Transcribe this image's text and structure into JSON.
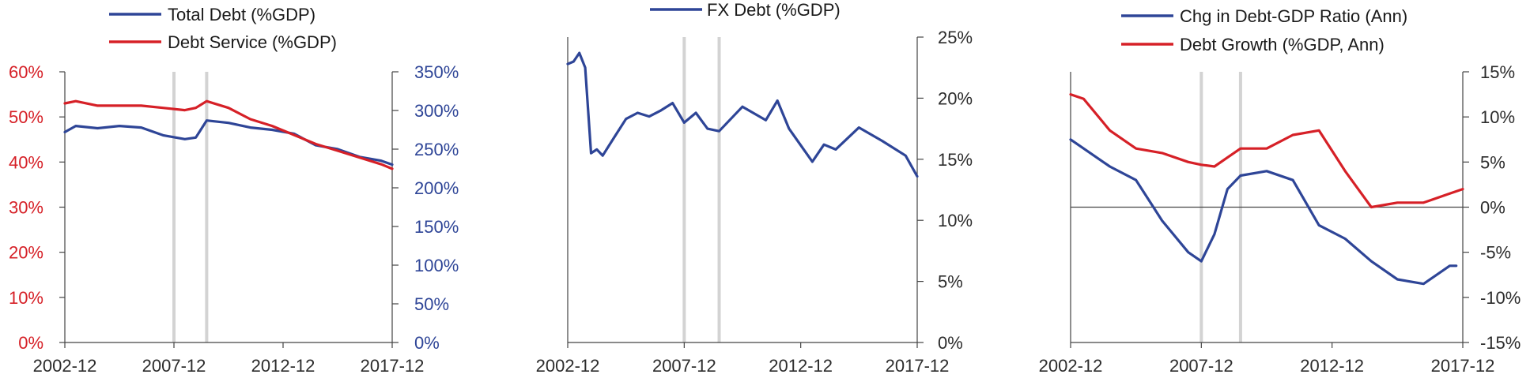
{
  "colors": {
    "blue": "#2e4597",
    "red": "#d62027",
    "axis": "#444444",
    "recession": "#d3d3d3"
  },
  "chart_data": [
    {
      "type": "line",
      "legend": [
        {
          "name": "Total Debt (%GDP)",
          "color": "#2e4597"
        },
        {
          "name": "Debt Service (%GDP)",
          "color": "#d62027"
        }
      ],
      "x_ticks": [
        "2002-12",
        "2007-12",
        "2012-12",
        "2017-12"
      ],
      "xlim": [
        "2002-12",
        "2017-12"
      ],
      "recession_markers": [
        "2007-12",
        "2009-06"
      ],
      "left_axis": {
        "ticks": [
          "0%",
          "10%",
          "20%",
          "30%",
          "40%",
          "50%",
          "60%"
        ],
        "ylim": [
          0,
          60
        ],
        "color": "#d62027"
      },
      "right_axis": {
        "ticks": [
          "0%",
          "50%",
          "100%",
          "150%",
          "200%",
          "250%",
          "300%",
          "350%"
        ],
        "ylim": [
          0,
          350
        ],
        "color": "#2e4597"
      },
      "series": [
        {
          "name": "Total Debt (%GDP)",
          "axis": "right",
          "color": "#2e4597",
          "x": [
            "2002-12",
            "2003-06",
            "2004-06",
            "2005-06",
            "2006-06",
            "2007-06",
            "2008-06",
            "2008-12",
            "2009-06",
            "2010-06",
            "2011-06",
            "2012-06",
            "2013-06",
            "2014-06",
            "2015-06",
            "2016-06",
            "2017-06",
            "2017-12"
          ],
          "y": [
            272,
            280,
            277,
            280,
            278,
            268,
            263,
            265,
            287,
            284,
            278,
            275,
            270,
            255,
            250,
            240,
            235,
            230
          ]
        },
        {
          "name": "Debt Service (%GDP)",
          "axis": "left",
          "color": "#d62027",
          "x": [
            "2002-12",
            "2003-06",
            "2004-06",
            "2005-06",
            "2006-06",
            "2007-06",
            "2008-06",
            "2008-12",
            "2009-06",
            "2010-06",
            "2011-06",
            "2012-06",
            "2013-06",
            "2014-06",
            "2015-06",
            "2016-06",
            "2017-06",
            "2017-12"
          ],
          "y": [
            53,
            53.5,
            52.5,
            52.5,
            52.5,
            52,
            51.5,
            52,
            53.5,
            52,
            49.5,
            48,
            46,
            44,
            42.5,
            41,
            39.5,
            38.5
          ]
        }
      ]
    },
    {
      "type": "line",
      "legend": [
        {
          "name": "FX Debt (%GDP)",
          "color": "#2e4597"
        }
      ],
      "x_ticks": [
        "2002-12",
        "2007-12",
        "2012-12",
        "2017-12"
      ],
      "xlim": [
        "2002-12",
        "2017-12"
      ],
      "recession_markers": [
        "2007-12",
        "2009-06"
      ],
      "right_axis": {
        "ticks": [
          "0%",
          "5%",
          "10%",
          "15%",
          "20%",
          "25%"
        ],
        "ylim": [
          0,
          25
        ],
        "color": "#444444"
      },
      "series": [
        {
          "name": "FX Debt (%GDP)",
          "axis": "right",
          "color": "#2e4597",
          "x": [
            "2002-12",
            "2003-03",
            "2003-06",
            "2003-09",
            "2003-12",
            "2004-03",
            "2004-06",
            "2004-12",
            "2005-06",
            "2005-12",
            "2006-06",
            "2006-12",
            "2007-06",
            "2007-12",
            "2008-06",
            "2008-12",
            "2009-06",
            "2010-06",
            "2011-06",
            "2011-12",
            "2012-06",
            "2013-06",
            "2013-12",
            "2014-06",
            "2015-06",
            "2016-06",
            "2017-06",
            "2017-12"
          ],
          "y": [
            22.8,
            23,
            23.7,
            22.5,
            15.5,
            15.8,
            15.3,
            16.8,
            18.3,
            18.8,
            18.5,
            19,
            19.6,
            18,
            18.8,
            17.5,
            17.3,
            19.3,
            18.2,
            19.8,
            17.5,
            14.8,
            16.2,
            15.8,
            17.6,
            16.5,
            15.3,
            13.6
          ]
        }
      ]
    },
    {
      "type": "line",
      "legend": [
        {
          "name": "Chg in Debt-GDP Ratio (Ann)",
          "color": "#2e4597"
        },
        {
          "name": "Debt Growth (%GDP, Ann)",
          "color": "#d62027"
        }
      ],
      "x_ticks": [
        "2002-12",
        "2007-12",
        "2012-12",
        "2017-12"
      ],
      "xlim": [
        "2002-12",
        "2017-12"
      ],
      "recession_markers": [
        "2007-12",
        "2009-06"
      ],
      "right_axis": {
        "ticks": [
          "-15%",
          "-10%",
          "-5%",
          "0%",
          "5%",
          "10%",
          "15%"
        ],
        "ylim": [
          -15,
          15
        ],
        "color": "#444444"
      },
      "series": [
        {
          "name": "Chg in Debt-GDP Ratio (Ann)",
          "axis": "right",
          "color": "#2e4597",
          "x": [
            "2002-12",
            "2003-06",
            "2004-06",
            "2005-06",
            "2006-06",
            "2007-06",
            "2007-12",
            "2008-06",
            "2008-12",
            "2009-06",
            "2010-06",
            "2011-06",
            "2012-06",
            "2013-06",
            "2014-06",
            "2015-06",
            "2016-06",
            "2017-06",
            "2017-09"
          ],
          "y": [
            7.5,
            6.5,
            4.5,
            3,
            -1.5,
            -5,
            -6,
            -3,
            2,
            3.5,
            4,
            3,
            -2,
            -3.5,
            -6,
            -8,
            -8.5,
            -6.5,
            -6.5
          ]
        },
        {
          "name": "Debt Growth (%GDP, Ann)",
          "axis": "right",
          "color": "#d62027",
          "x": [
            "2002-12",
            "2003-06",
            "2004-06",
            "2005-06",
            "2006-06",
            "2007-06",
            "2007-12",
            "2008-06",
            "2008-12",
            "2009-06",
            "2010-06",
            "2011-06",
            "2012-06",
            "2013-06",
            "2014-06",
            "2015-06",
            "2016-06",
            "2017-06",
            "2017-12"
          ],
          "y": [
            12.5,
            12,
            8.5,
            6.5,
            6,
            5,
            4.7,
            4.5,
            5.5,
            6.5,
            6.5,
            8,
            8.5,
            4,
            0,
            0.5,
            0.5,
            1.5,
            2
          ]
        }
      ]
    }
  ]
}
